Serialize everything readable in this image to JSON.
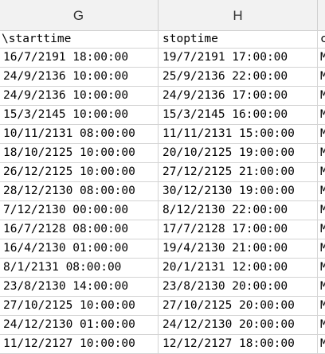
{
  "columns": {
    "g": "G",
    "h": "H"
  },
  "header_row": {
    "g": "starttime",
    "h": "stoptime",
    "i": "c",
    "g_prefix": "\\"
  },
  "rows": [
    {
      "start": "16/7/2191 18:00:00",
      "stop": "19/7/2191 17:00:00",
      "next": "M"
    },
    {
      "start": "24/9/2136 10:00:00",
      "stop": "25/9/2136 22:00:00",
      "next": "M"
    },
    {
      "start": "24/9/2136 10:00:00",
      "stop": "24/9/2136 17:00:00",
      "next": "M"
    },
    {
      "start": "15/3/2145 10:00:00",
      "stop": "15/3/2145 16:00:00",
      "next": "M"
    },
    {
      "start": "10/11/2131 08:00:00",
      "stop": "11/11/2131 15:00:00",
      "next": "M"
    },
    {
      "start": "18/10/2125 10:00:00",
      "stop": "20/10/2125 19:00:00",
      "next": "M"
    },
    {
      "start": "26/12/2125 10:00:00",
      "stop": "27/12/2125 21:00:00",
      "next": "M"
    },
    {
      "start": "28/12/2130 08:00:00",
      "stop": "30/12/2130 19:00:00",
      "next": "M"
    },
    {
      "start": "7/12/2130 00:00:00",
      "stop": "8/12/2130 22:00:00",
      "next": "M"
    },
    {
      "start": "16/7/2128 08:00:00",
      "stop": "17/7/2128 17:00:00",
      "next": "M"
    },
    {
      "start": "16/4/2130 01:00:00",
      "stop": "19/4/2130 21:00:00",
      "next": "M"
    },
    {
      "start": "8/1/2131 08:00:00",
      "stop": "20/1/2131 12:00:00",
      "next": "M"
    },
    {
      "start": "23/8/2130 14:00:00",
      "stop": "23/8/2130 20:00:00",
      "next": "M"
    },
    {
      "start": "27/10/2125 10:00:00",
      "stop": "27/10/2125 20:00:00",
      "next": "M"
    },
    {
      "start": "24/12/2130 01:00:00",
      "stop": "24/12/2130 20:00:00",
      "next": "M"
    },
    {
      "start": "11/12/2127 10:00:00",
      "stop": "12/12/2127 18:00:00",
      "next": "M"
    }
  ]
}
